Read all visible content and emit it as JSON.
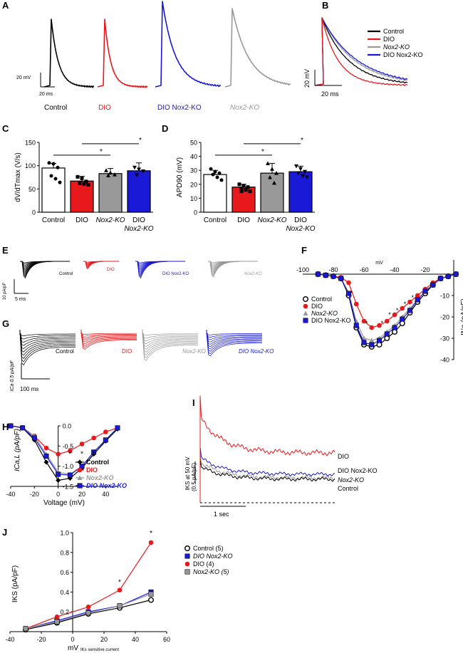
{
  "figure": {
    "panel_labels": [
      "A",
      "B",
      "C",
      "D",
      "E",
      "F",
      "G",
      "H",
      "I",
      "J"
    ],
    "colors": {
      "control": "#000000",
      "dio": "#e8191c",
      "dio_nox2ko": "#1a1ad6",
      "nox2ko": "#999999"
    }
  },
  "panelA": {
    "scale_v": "20 mV",
    "scale_t": "20 ms",
    "labels": [
      "Control",
      "DIO",
      "DIO Nox2-KO",
      "Nox2-KO"
    ]
  },
  "panelB": {
    "scale_v": "20 mV",
    "scale_t": "20 ms",
    "legend": [
      "Control",
      "DIO",
      "Nox2-KO",
      "DIO Nox2-KO"
    ]
  },
  "panelE": {
    "scale": "10 pA/pF",
    "scale_t": "5 ms",
    "labels": [
      "Control",
      "DIO",
      "DIO Nox2-KO",
      "Nox2-KO"
    ]
  },
  "panelG": {
    "scale": "0.5 pA/pF",
    "scale_t": "100 ms",
    "labels": [
      "Control",
      "DIO",
      "Nox2-KO",
      "DIO Nox2-KO"
    ]
  },
  "panelI": {
    "ylabel_1": "IKS at 50 mV",
    "ylabel_2": "(0.5 pA/pF)",
    "scale_t": "1 sec",
    "labels": [
      "DIO",
      "DIO Nox2-KO",
      "Nox2-KO",
      "Control"
    ]
  },
  "chart_data": [
    {
      "panel": "C",
      "type": "bar",
      "ylabel": "dV/dTmax (V/s)",
      "categories": [
        "Control",
        "DIO",
        "Nox2-KO",
        "DIO Nox2-KO"
      ],
      "category_lines": [
        [
          "Control"
        ],
        [
          "DIO"
        ],
        [
          "Nox2-KO"
        ],
        [
          "DIO",
          "Nox2-KO"
        ]
      ],
      "values": [
        95,
        67,
        83,
        89
      ],
      "errors": [
        10,
        10,
        11,
        17
      ],
      "points": [
        [
          106,
          104,
          96,
          78,
          72,
          64
        ],
        [
          76,
          73,
          66,
          62,
          61,
          59
        ],
        [
          90,
          85,
          81,
          79
        ],
        [
          96,
          92,
          88,
          80
        ]
      ],
      "ylim": [
        0,
        150
      ],
      "yticks": [
        0,
        50,
        100,
        150
      ],
      "significance": [
        {
          "from": 0,
          "to": 2,
          "label": "*"
        },
        {
          "from": 1,
          "to": 3,
          "label": "*"
        }
      ]
    },
    {
      "panel": "D",
      "type": "bar",
      "ylabel": "APD90 (mV)",
      "categories": [
        "Control",
        "DIO",
        "Nox2-KO",
        "DIO Nox2-KO"
      ],
      "category_lines": [
        [
          "Control"
        ],
        [
          "DIO"
        ],
        [
          "Nox2-KO"
        ],
        [
          "DIO",
          "Nox2-KO"
        ]
      ],
      "values": [
        27,
        18,
        28,
        29
      ],
      "errors": [
        3,
        2,
        7,
        4
      ],
      "points": [
        [
          31,
          29,
          28,
          27,
          25,
          23
        ],
        [
          20,
          19,
          18,
          17,
          16,
          15,
          15
        ],
        [
          35,
          31,
          28,
          25,
          21
        ],
        [
          33,
          31,
          29,
          28,
          26,
          25
        ]
      ],
      "ylim": [
        0,
        50
      ],
      "yticks": [
        0,
        10,
        20,
        30,
        40,
        50
      ],
      "significance": [
        {
          "from": 0,
          "to": 2,
          "label": "*"
        },
        {
          "from": 1,
          "to": 3,
          "label": "*"
        }
      ]
    },
    {
      "panel": "F",
      "type": "line",
      "xlabel": "mV",
      "ylabel": "INa (pA/pF)",
      "xlim": [
        -100,
        0
      ],
      "ylim": [
        -40,
        0
      ],
      "xticks": [
        -100,
        -80,
        -60,
        -40,
        -20
      ],
      "yticks": [
        -10,
        -20,
        -30,
        -40
      ],
      "x": [
        -90,
        -85,
        -80,
        -75,
        -70,
        -65,
        -60,
        -55,
        -50,
        -45,
        -40,
        -35,
        -30,
        -25,
        -20,
        -15,
        -10,
        -5,
        0
      ],
      "series": [
        {
          "name": "Control",
          "values": [
            0,
            -0.5,
            -1,
            -2,
            -10,
            -25,
            -33,
            -34,
            -33,
            -30,
            -27,
            -23,
            -18,
            -13,
            -9,
            -5,
            -2,
            -1,
            0
          ]
        },
        {
          "name": "DIO",
          "values": [
            0,
            -0.5,
            -1,
            -1.5,
            -4,
            -14,
            -22,
            -25,
            -24,
            -22,
            -19,
            -16,
            -13,
            -10,
            -7,
            -4,
            -2,
            -1,
            0
          ]
        },
        {
          "name": "Nox2-KO",
          "values": [
            0,
            -0.5,
            -1,
            -2,
            -9,
            -22,
            -30,
            -31,
            -30,
            -27,
            -24,
            -20,
            -16,
            -12,
            -8,
            -5,
            -2,
            -1,
            0
          ]
        },
        {
          "name": "DIO Nox2-KO",
          "values": [
            0,
            -0.5,
            -1,
            -2,
            -9,
            -24,
            -32,
            -33,
            -31,
            -28,
            -25,
            -21,
            -17,
            -12,
            -8,
            -5,
            -2,
            -1,
            0
          ]
        }
      ]
    },
    {
      "panel": "H",
      "type": "line",
      "xlabel": "Voltage (mV)",
      "ylabel": "ICa,L (pA/pF)",
      "xlim": [
        -40,
        50
      ],
      "ylim": [
        -1.5,
        0
      ],
      "xticks": [
        -40,
        -20,
        0,
        20,
        40
      ],
      "yticks": [
        0.0,
        -0.5,
        -1.0,
        -1.5
      ],
      "x": [
        -40,
        -30,
        -20,
        -10,
        0,
        10,
        20,
        30,
        40,
        50
      ],
      "series": [
        {
          "name": "Control",
          "values": [
            0,
            -0.05,
            -0.35,
            -0.9,
            -1.35,
            -1.3,
            -1.05,
            -0.7,
            -0.38,
            -0.08
          ]
        },
        {
          "name": "DIO",
          "values": [
            0,
            -0.04,
            -0.25,
            -0.55,
            -0.7,
            -0.62,
            -0.45,
            -0.3,
            -0.15,
            -0.05
          ]
        },
        {
          "name": "Nox2-KO",
          "values": [
            0,
            -0.05,
            -0.25,
            -0.7,
            -1.15,
            -1.2,
            -1.0,
            -0.65,
            -0.35,
            -0.05
          ]
        },
        {
          "name": "DIO Nox2-KO",
          "values": [
            0,
            -0.05,
            -0.3,
            -0.75,
            -1.2,
            -1.22,
            -1.0,
            -0.65,
            -0.35,
            -0.05
          ]
        }
      ],
      "significance_x": [
        10,
        20,
        30
      ]
    },
    {
      "panel": "J",
      "type": "line",
      "xlabel": "mV IKs sensitive current",
      "ylabel": "IKS (pA/pF)",
      "xlim": [
        -40,
        60
      ],
      "ylim": [
        0,
        1.0
      ],
      "xticks": [
        -40,
        -20,
        0,
        20,
        40,
        60
      ],
      "yticks": [
        0.2,
        0.4,
        0.6,
        0.8,
        1.0
      ],
      "x": [
        -30,
        -10,
        10,
        30,
        50
      ],
      "series": [
        {
          "name": "Control (5)",
          "values": [
            0.02,
            0.09,
            0.18,
            0.24,
            0.32
          ]
        },
        {
          "name": "DIO Nox2-KO",
          "values": [
            0.03,
            0.11,
            0.2,
            0.26,
            0.4
          ]
        },
        {
          "name": "DIO (4)",
          "values": [
            0.03,
            0.15,
            0.25,
            0.42,
            0.9
          ]
        },
        {
          "name": "Nox2-KO (5)",
          "values": [
            0.03,
            0.1,
            0.19,
            0.26,
            0.38
          ]
        }
      ],
      "significance_x": [
        30,
        50
      ]
    }
  ]
}
